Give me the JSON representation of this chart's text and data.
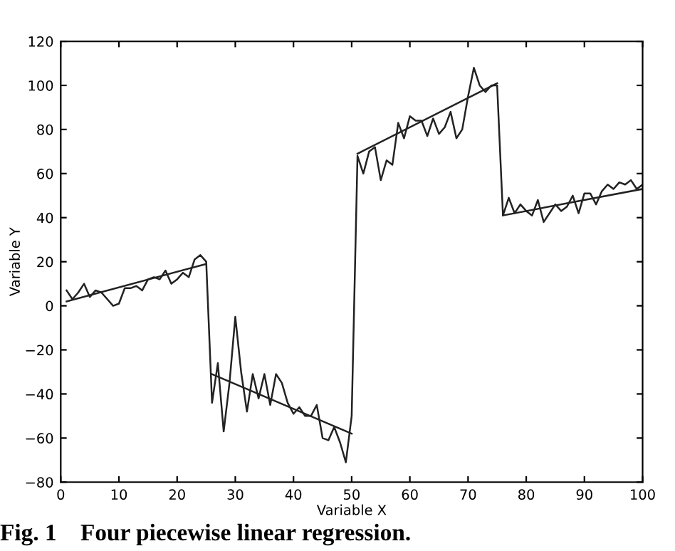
{
  "chart_data": {
    "type": "line",
    "xlabel": "Variable X",
    "ylabel": "Variable Y",
    "xlim": [
      0,
      100
    ],
    "ylim": [
      -80,
      120
    ],
    "xticks": [
      0,
      10,
      20,
      30,
      40,
      50,
      60,
      70,
      80,
      90,
      100
    ],
    "yticks": [
      -80,
      -60,
      -40,
      -20,
      0,
      20,
      40,
      60,
      80,
      100,
      120
    ],
    "grid": false,
    "legend": false,
    "marker": "none",
    "line_style": "solid",
    "annotations": [
      "Fig. 1    Four piecewise linear regression."
    ],
    "series": [
      {
        "color": "#222222",
        "x": [
          1,
          2,
          3,
          4,
          5,
          6,
          7,
          8,
          9,
          10,
          11,
          12,
          13,
          14,
          15,
          16,
          17,
          18,
          19,
          20,
          21,
          22,
          23,
          24,
          25,
          26,
          27,
          28,
          29,
          30,
          31,
          32,
          33,
          34,
          35,
          36,
          37,
          38,
          39,
          40,
          41,
          42,
          43,
          44,
          45,
          46,
          47,
          48,
          49,
          50,
          51,
          52,
          53,
          54,
          55,
          56,
          57,
          58,
          59,
          60,
          61,
          62,
          63,
          64,
          65,
          66,
          67,
          68,
          69,
          70,
          71,
          72,
          73,
          74,
          75,
          76,
          77,
          78,
          79,
          80,
          81,
          82,
          83,
          84,
          85,
          86,
          87,
          88,
          89,
          90,
          91,
          92,
          93,
          94,
          95,
          96,
          97,
          98,
          99,
          100
        ],
        "values": [
          7,
          3,
          6,
          10,
          4,
          7,
          6,
          3,
          0,
          1,
          8,
          8,
          9,
          7,
          12,
          13,
          12,
          16,
          10,
          12,
          15,
          13,
          21,
          23,
          20,
          -44,
          -26,
          -57,
          -35,
          -5,
          -30,
          -48,
          -31,
          -42,
          -31,
          -45,
          -31,
          -35,
          -44,
          -49,
          -46,
          -50,
          -50,
          -45,
          -60,
          -61,
          -55,
          -62,
          -71,
          -50,
          68,
          60,
          70,
          72,
          57,
          66,
          64,
          83,
          76,
          86,
          84,
          84,
          77,
          85,
          78,
          81,
          88,
          76,
          80,
          95,
          108,
          100,
          97,
          100,
          100,
          41,
          49,
          42,
          46,
          43,
          41,
          48,
          38,
          42,
          46,
          43,
          45,
          50,
          42,
          51,
          51,
          46,
          52,
          55,
          53,
          56,
          55,
          57,
          53,
          55
        ]
      },
      {
        "color": "#222222",
        "x": [
          1,
          25
        ],
        "values": [
          2,
          19
        ]
      },
      {
        "color": "#222222",
        "x": [
          26,
          50
        ],
        "values": [
          -31,
          -58
        ]
      },
      {
        "color": "#222222",
        "x": [
          51,
          75
        ],
        "values": [
          69,
          101
        ]
      },
      {
        "color": "#222222",
        "x": [
          76,
          100
        ],
        "values": [
          41,
          53
        ]
      }
    ]
  }
}
